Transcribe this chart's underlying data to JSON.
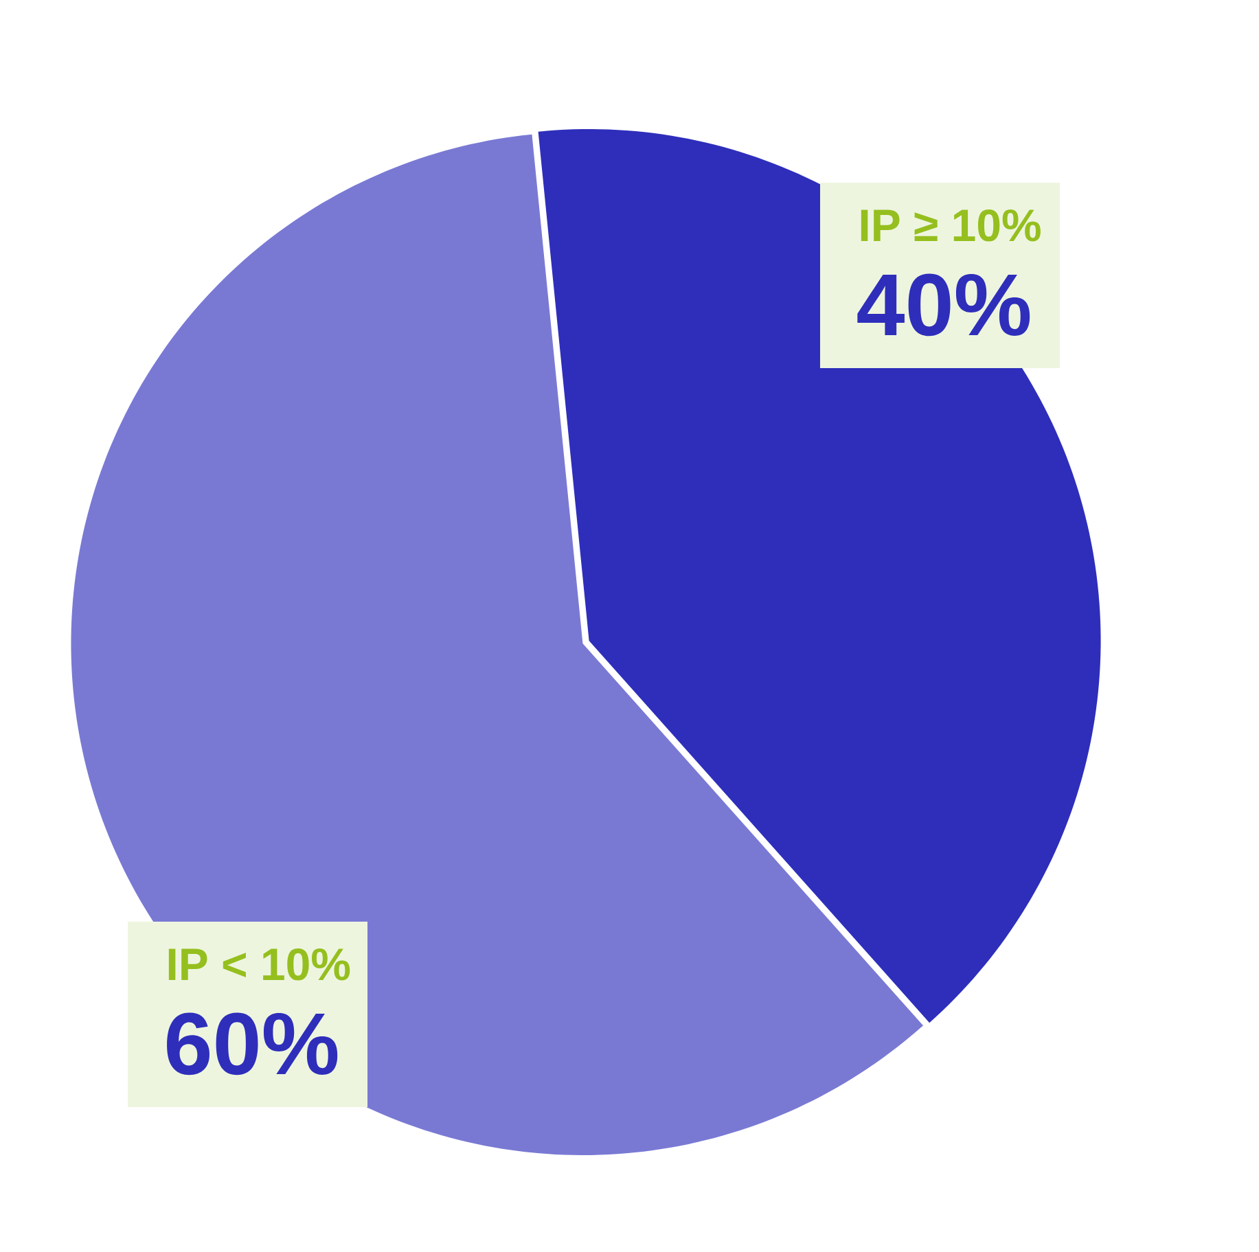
{
  "chart_data": {
    "type": "pie",
    "categories": [
      "IP ≥ 10%",
      "IP < 10%"
    ],
    "values": [
      40,
      60
    ],
    "colors": [
      "#2e2ebb",
      "#7979d4"
    ],
    "value_labels": [
      "40%",
      "60%"
    ]
  }
}
